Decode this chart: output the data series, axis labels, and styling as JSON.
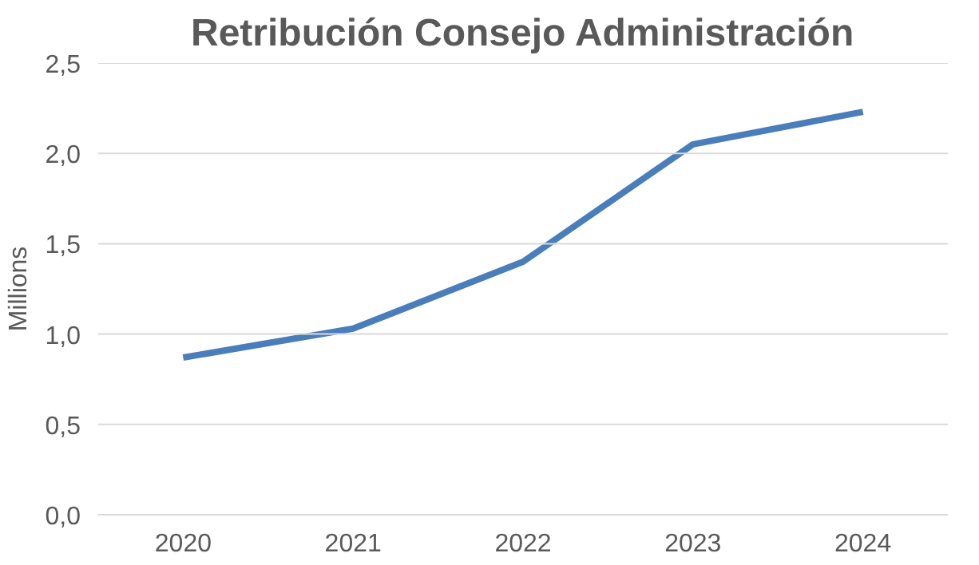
{
  "chart_data": {
    "type": "line",
    "title": "Retribución Consejo Administración",
    "ylabel": "Millions",
    "categories": [
      "2020",
      "2021",
      "2022",
      "2023",
      "2024"
    ],
    "series": [
      {
        "color": "#4a7ebb",
        "values": [
          0.87,
          1.03,
          1.4,
          2.05,
          2.23
        ]
      }
    ],
    "ylim": [
      0,
      2.5
    ],
    "yticks": [
      {
        "value": 0,
        "label": "0,0"
      },
      {
        "value": 0.5,
        "label": "0,5"
      },
      {
        "value": 1,
        "label": "1,0"
      },
      {
        "value": 1.5,
        "label": "1,5"
      },
      {
        "value": 2,
        "label": "2,0"
      },
      {
        "value": 2.5,
        "label": "2,5"
      }
    ],
    "grid": "y",
    "marker": "none",
    "line_style": "solid"
  }
}
